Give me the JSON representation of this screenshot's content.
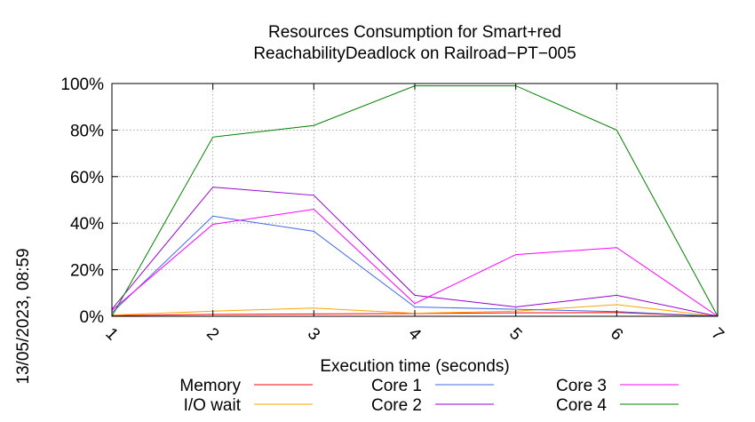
{
  "chart_data": {
    "type": "line",
    "title_line1": "Resources Consumption for Smart+red",
    "title_line2": "ReachabilityDeadlock on Railroad−PT−005",
    "xlabel": "Execution time (seconds)",
    "ylabel": "",
    "side_label": "13/05/2023, 08:59",
    "x": [
      1,
      2,
      3,
      4,
      5,
      6,
      7
    ],
    "x_ticks": [
      "1",
      "2",
      "3",
      "4",
      "5",
      "6",
      "7"
    ],
    "xlim": [
      1,
      7
    ],
    "ylim": [
      0,
      100
    ],
    "y_ticks": [
      {
        "value": 0,
        "label": "0%"
      },
      {
        "value": 20,
        "label": "20%"
      },
      {
        "value": 40,
        "label": "40%"
      },
      {
        "value": 60,
        "label": "60%"
      },
      {
        "value": 80,
        "label": "80%"
      },
      {
        "value": 100,
        "label": "100%"
      }
    ],
    "grid": true,
    "legend_position": "bottom",
    "series": [
      {
        "name": "Memory",
        "color": "#ff0000",
        "values": [
          0.3,
          0.8,
          1.0,
          1.2,
          1.5,
          1.6,
          0
        ]
      },
      {
        "name": "I/O wait",
        "color": "#ffa500",
        "values": [
          0.5,
          2.2,
          3.5,
          1.3,
          2.2,
          5.0,
          0
        ]
      },
      {
        "name": "Core 1",
        "color": "#4169e1",
        "values": [
          1.5,
          43,
          36.5,
          4.0,
          3.0,
          2.0,
          0
        ]
      },
      {
        "name": "Core 2",
        "color": "#9400d3",
        "values": [
          3.0,
          55.5,
          52,
          9.0,
          4.0,
          9.0,
          0
        ]
      },
      {
        "name": "Core 3",
        "color": "#ff00ff",
        "values": [
          2.5,
          39.5,
          46,
          5.5,
          26.5,
          29.5,
          0
        ]
      },
      {
        "name": "Core 4",
        "color": "#008000",
        "values": [
          0,
          77,
          82,
          99,
          99,
          80,
          0
        ]
      }
    ]
  }
}
